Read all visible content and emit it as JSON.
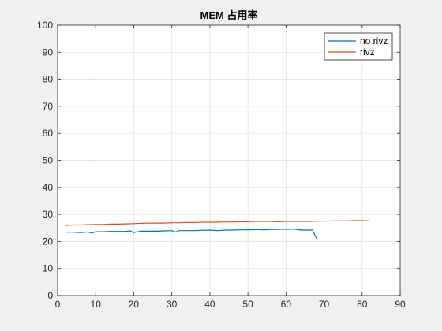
{
  "chart_data": {
    "type": "line",
    "title": "MEM 占用率",
    "xlabel": "",
    "ylabel": "",
    "xlim": [
      0,
      90
    ],
    "ylim": [
      0,
      100
    ],
    "xticks": [
      0,
      10,
      20,
      30,
      40,
      50,
      60,
      70,
      80,
      90
    ],
    "yticks": [
      0,
      10,
      20,
      30,
      40,
      50,
      60,
      70,
      80,
      90,
      100
    ],
    "grid": true,
    "legend_position": "top-right",
    "series": [
      {
        "name": "no rivz",
        "color": "#0072bd",
        "x": [
          2,
          4,
          6,
          8,
          9,
          10,
          12,
          14,
          16,
          18,
          19,
          20,
          22,
          24,
          26,
          28,
          30,
          31,
          32,
          34,
          36,
          38,
          40,
          42,
          44,
          46,
          48,
          50,
          52,
          54,
          56,
          58,
          60,
          62,
          64,
          66,
          67,
          68
        ],
        "y": [
          23.4,
          23.4,
          23.3,
          23.5,
          23.1,
          23.6,
          23.6,
          23.7,
          23.7,
          23.7,
          23.9,
          23.3,
          23.8,
          23.8,
          23.8,
          23.9,
          24.0,
          23.5,
          24.0,
          24.0,
          24.0,
          24.1,
          24.2,
          24.0,
          24.2,
          24.2,
          24.3,
          24.3,
          24.4,
          24.3,
          24.4,
          24.5,
          24.5,
          24.6,
          24.2,
          24.2,
          24.2,
          21.0
        ]
      },
      {
        "name": "rivz",
        "color": "#d95319",
        "x": [
          2,
          4,
          6,
          8,
          10,
          12,
          14,
          16,
          18,
          20,
          22,
          24,
          26,
          28,
          30,
          32,
          34,
          36,
          38,
          40,
          42,
          44,
          46,
          48,
          50,
          52,
          54,
          56,
          58,
          60,
          62,
          64,
          66,
          68,
          70,
          72,
          74,
          76,
          78,
          80,
          82
        ],
        "y": [
          25.9,
          26.1,
          26.1,
          26.2,
          26.3,
          26.3,
          26.4,
          26.4,
          26.5,
          26.6,
          26.7,
          26.8,
          26.8,
          26.8,
          26.9,
          26.9,
          27.0,
          27.0,
          27.1,
          27.1,
          27.1,
          27.2,
          27.2,
          27.3,
          27.3,
          27.4,
          27.4,
          27.4,
          27.3,
          27.4,
          27.4,
          27.4,
          27.4,
          27.5,
          27.5,
          27.6,
          27.6,
          27.6,
          27.7,
          27.7,
          27.6
        ]
      }
    ]
  }
}
